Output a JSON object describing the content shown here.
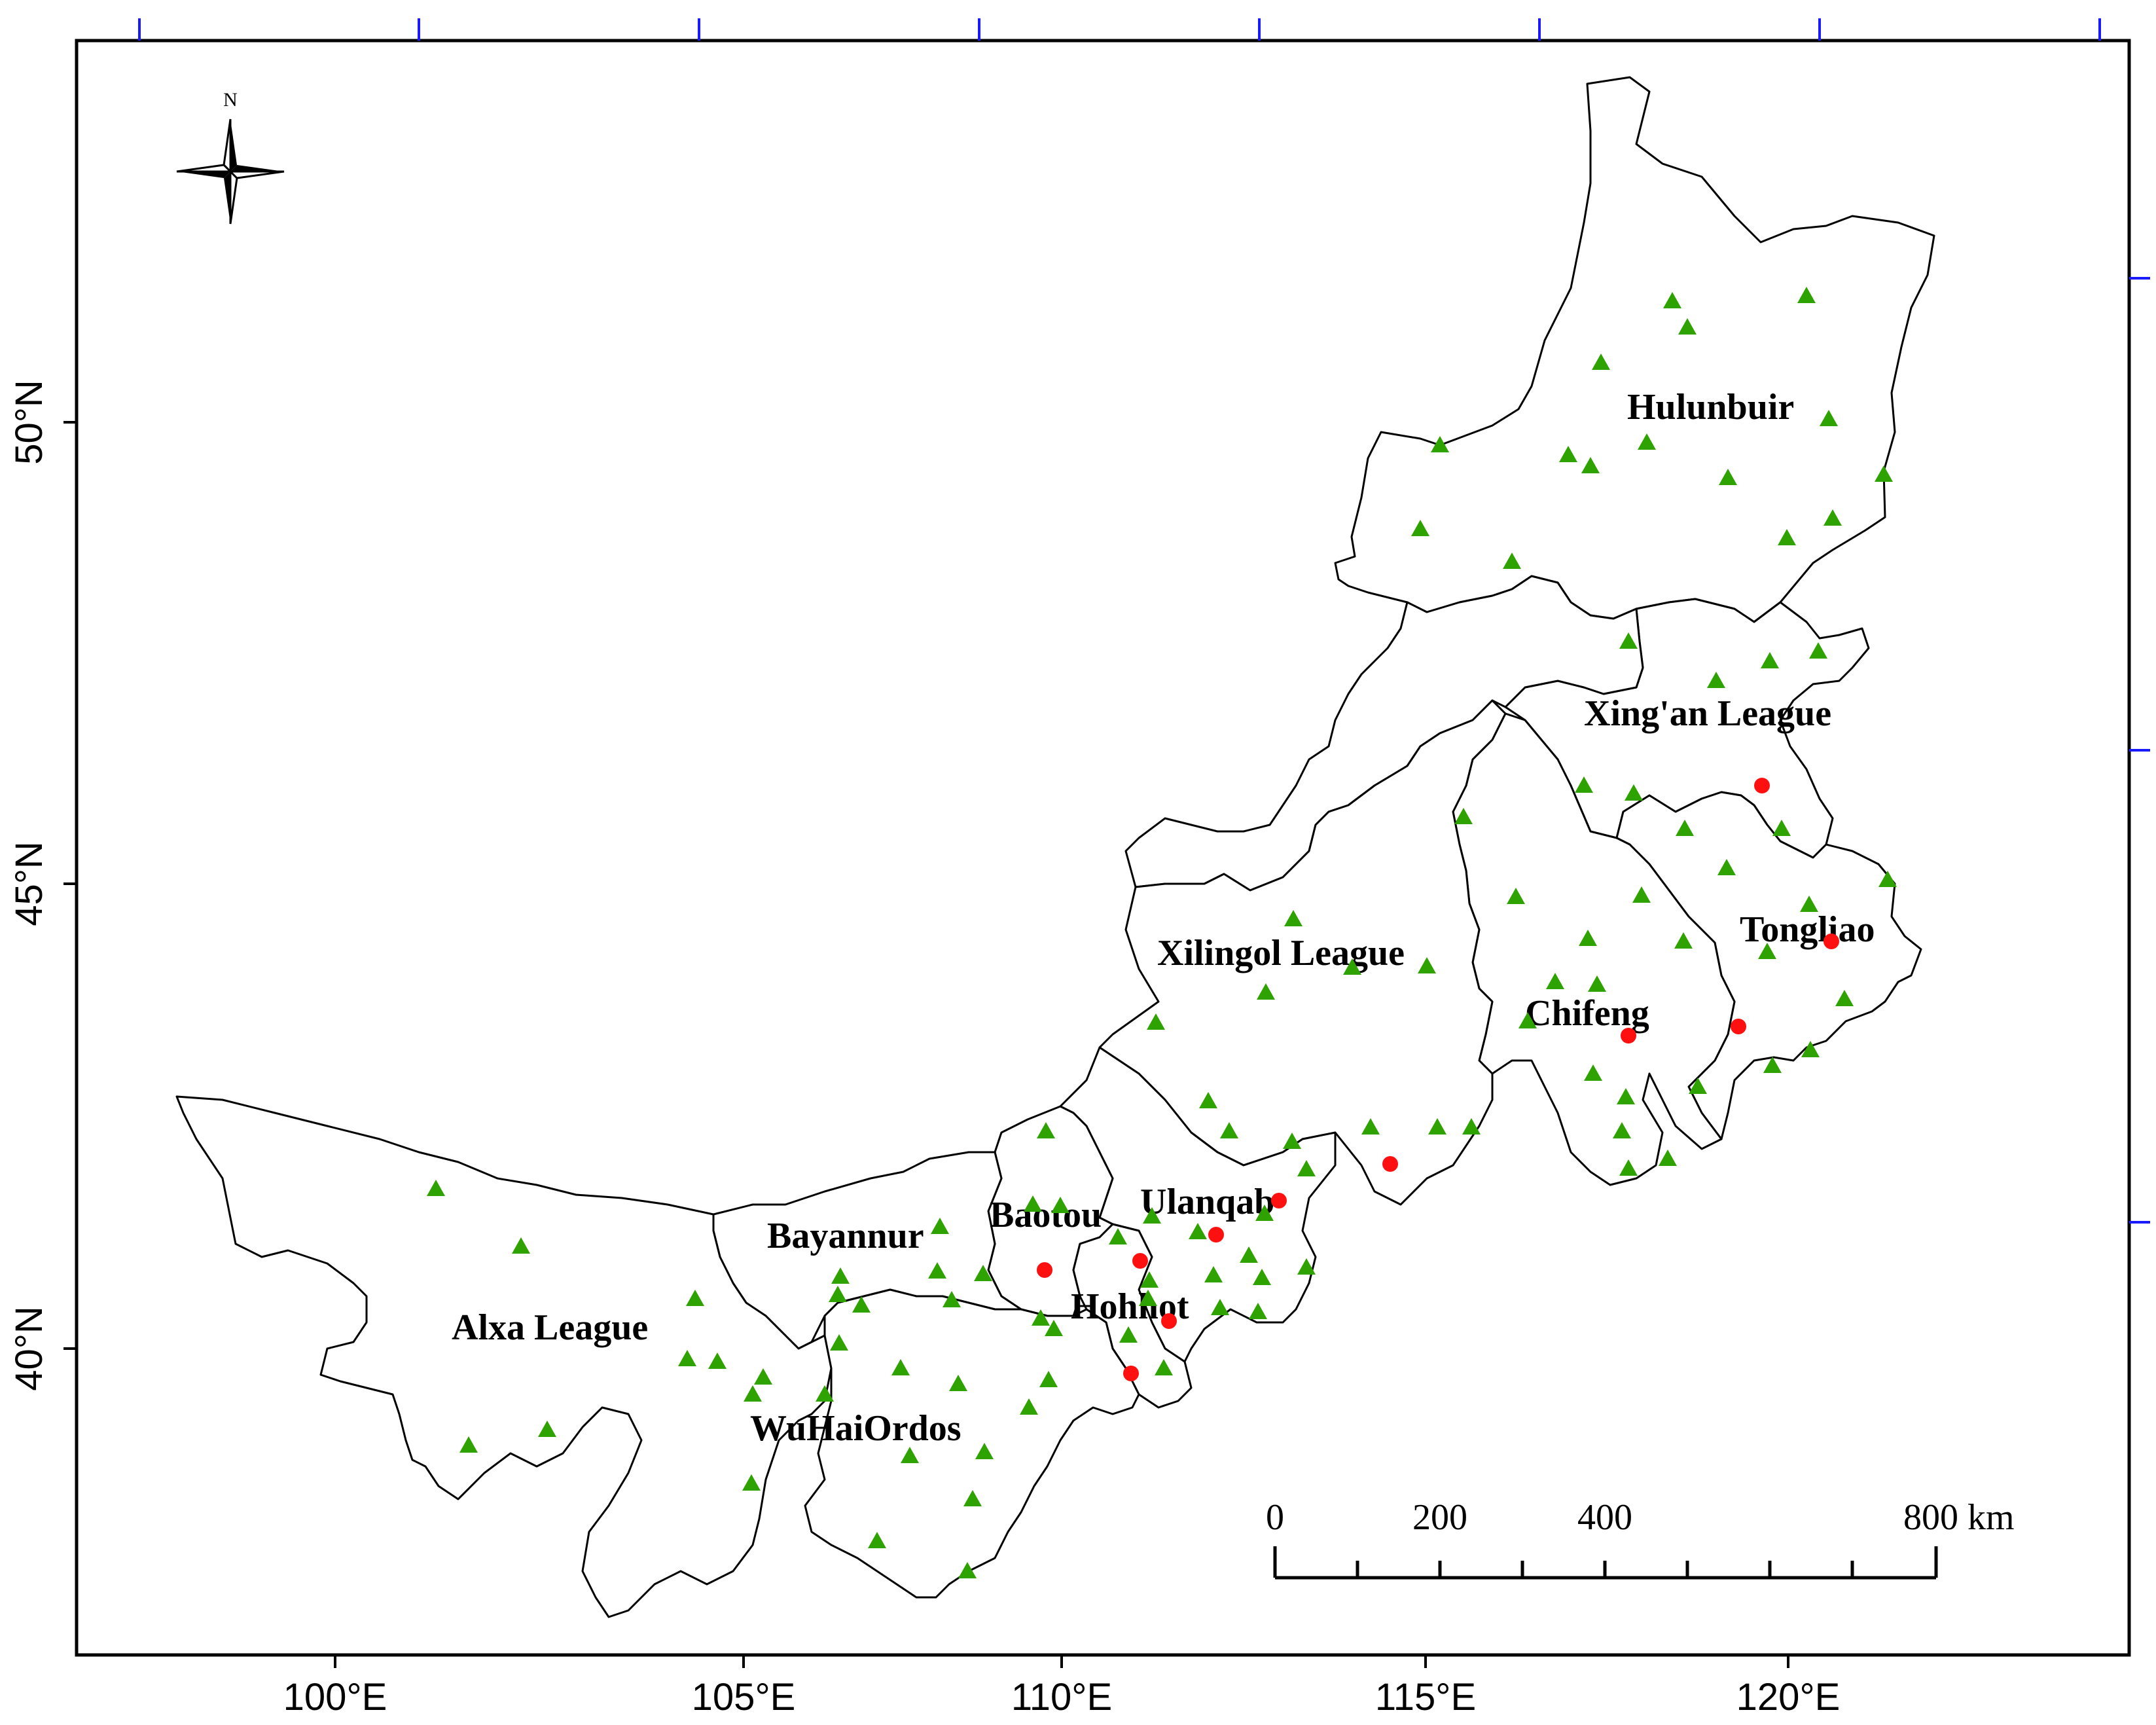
{
  "map": {
    "x_ticks": [
      "100°E",
      "105°E",
      "110°E",
      "115°E",
      "120°E"
    ],
    "y_ticks": [
      "50°N",
      "45°N",
      "40°N"
    ],
    "north_label": "N",
    "regions": [
      "Hulunbuir",
      "Xing'an League",
      "Tongliao",
      "Chifeng",
      "Xilingol League",
      "Ulanqab",
      "Baotou",
      "Bayannur",
      "Hohhot",
      "Alxa League",
      "WuHaiOrdos"
    ],
    "scale_bar": {
      "labels": [
        "0",
        "200",
        "400",
        "800 km"
      ]
    },
    "colors": {
      "station": "#2ea300",
      "city": "#ff1010",
      "border": "#000000",
      "tick": "#1a1aff"
    }
  }
}
